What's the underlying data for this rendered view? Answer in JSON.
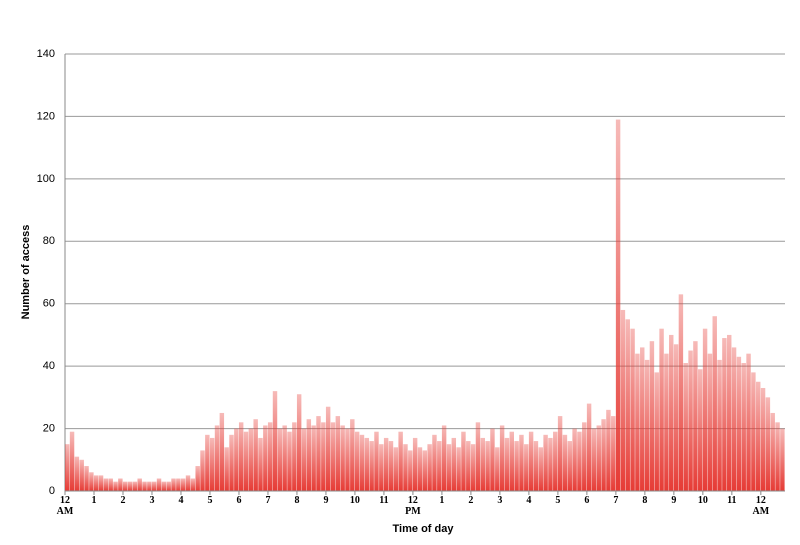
{
  "chart_data": {
    "type": "histogram",
    "x_label": "Time of day",
    "y_label": "Number of access",
    "color": "#e63b35",
    "bins": [
      0,
      10,
      20,
      30,
      40,
      50,
      60,
      70,
      80,
      90,
      100,
      110,
      120,
      130,
      140,
      150,
      160,
      170,
      180,
      190,
      200,
      210,
      220,
      230,
      240,
      250,
      260,
      270,
      280,
      290,
      300,
      310,
      320,
      330,
      340,
      350,
      360,
      370,
      380,
      390,
      400,
      410,
      420,
      430,
      440,
      450,
      460,
      470,
      480,
      490,
      500,
      510,
      520,
      530,
      540,
      550,
      560,
      570,
      580,
      590,
      600,
      610,
      620,
      630,
      640,
      650,
      660,
      670,
      680,
      690,
      700,
      710,
      720,
      730,
      740,
      750,
      760,
      770,
      780,
      790,
      800,
      810,
      820,
      830,
      840,
      850,
      860,
      870,
      880,
      890,
      900,
      910,
      920,
      930,
      940,
      950,
      960,
      970,
      980,
      990,
      1000,
      1010,
      1020,
      1030,
      1040,
      1050,
      1060,
      1070,
      1080,
      1090,
      1100,
      1110,
      1120,
      1130,
      1140,
      1150,
      1160,
      1170,
      1180,
      1190,
      1200,
      1210,
      1220,
      1230,
      1240,
      1250,
      1260,
      1270,
      1280,
      1290,
      1300,
      1310,
      1320,
      1330,
      1340,
      1350,
      1360,
      1370,
      1380,
      1390,
      1400,
      1410,
      1420,
      1430,
      1440,
      1450,
      1460,
      1470,
      1480,
      1490
    ],
    "values": [
      15,
      19,
      11,
      10,
      8,
      6,
      5,
      5,
      4,
      4,
      3,
      4,
      3,
      3,
      3,
      4,
      3,
      3,
      3,
      4,
      3,
      3,
      4,
      4,
      4,
      5,
      4,
      8,
      13,
      18,
      17,
      21,
      25,
      14,
      18,
      20,
      22,
      19,
      20,
      23,
      17,
      21,
      22,
      32,
      20,
      21,
      19,
      22,
      31,
      20,
      23,
      21,
      24,
      22,
      27,
      22,
      24,
      21,
      20,
      23,
      19,
      18,
      17,
      16,
      19,
      15,
      17,
      16,
      14,
      19,
      15,
      13,
      17,
      14,
      13,
      15,
      18,
      16,
      21,
      15,
      17,
      14,
      19,
      16,
      15,
      22,
      17,
      16,
      20,
      14,
      21,
      17,
      19,
      16,
      18,
      15,
      19,
      16,
      14,
      18,
      17,
      19,
      24,
      18,
      16,
      20,
      19,
      22,
      28,
      20,
      21,
      23,
      26,
      24,
      119,
      58,
      55,
      52,
      44,
      46,
      42,
      48,
      38,
      52,
      44,
      50,
      47,
      63,
      41,
      45,
      48,
      39,
      52,
      44,
      56,
      42,
      49,
      50,
      46,
      43,
      41,
      44,
      38,
      35,
      33,
      30,
      25,
      22,
      20
    ],
    "xlim": [
      0,
      1490
    ],
    "xticks": [
      {
        "value": 0,
        "label": "12\nAM"
      },
      {
        "value": 60,
        "label": "1"
      },
      {
        "value": 120,
        "label": "2"
      },
      {
        "value": 180,
        "label": "3"
      },
      {
        "value": 240,
        "label": "4"
      },
      {
        "value": 300,
        "label": "5"
      },
      {
        "value": 360,
        "label": "6"
      },
      {
        "value": 420,
        "label": "7"
      },
      {
        "value": 480,
        "label": "8"
      },
      {
        "value": 540,
        "label": "9"
      },
      {
        "value": 600,
        "label": "10"
      },
      {
        "value": 660,
        "label": "11"
      },
      {
        "value": 720,
        "label": "12\nPM"
      },
      {
        "value": 780,
        "label": "1"
      },
      {
        "value": 840,
        "label": "2"
      },
      {
        "value": 900,
        "label": "3"
      },
      {
        "value": 960,
        "label": "4"
      },
      {
        "value": 1020,
        "label": "5"
      },
      {
        "value": 1080,
        "label": "6"
      },
      {
        "value": 1140,
        "label": "7"
      },
      {
        "value": 1200,
        "label": "8"
      },
      {
        "value": 1260,
        "label": "9"
      },
      {
        "value": 1320,
        "label": "10"
      },
      {
        "value": 1380,
        "label": "11"
      },
      {
        "value": 1440,
        "label": "12\nAM"
      }
    ],
    "ylim": [
      0,
      140
    ],
    "yticks": [
      0,
      20,
      40,
      60,
      80,
      100,
      120,
      140
    ],
    "grid": true
  }
}
